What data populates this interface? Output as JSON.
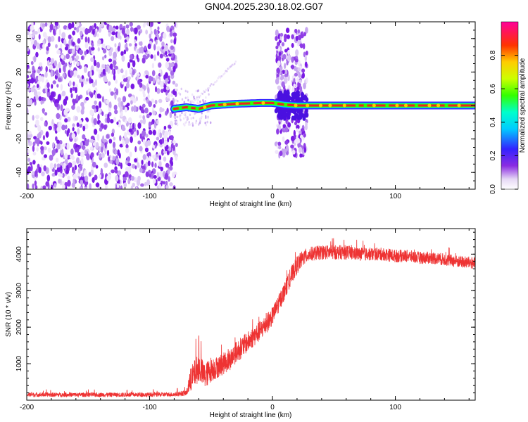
{
  "title": "GN04.2025.230.18.02.G07",
  "chart_data": [
    {
      "type": "heatmap",
      "xlabel": "Height of straight line (km)",
      "ylabel": "Frequency (Hz)",
      "xlim": [
        -200,
        165
      ],
      "ylim": [
        -50,
        50
      ],
      "x_ticks": [
        -200,
        -100,
        0,
        100
      ],
      "y_ticks": [
        -40,
        -20,
        0,
        20,
        40
      ],
      "colorbar": {
        "label": "Normalized spectral amplitude",
        "range": [
          0,
          1
        ],
        "ticks": [
          "0.0",
          "0.2",
          "0.4",
          "0.6",
          "0.8"
        ],
        "colormap": "rainbow (white-purple-blue-cyan-green-yellow-red-magenta)"
      },
      "features": [
        {
          "label": "broadband noise",
          "x_range": [
            -200,
            -78
          ],
          "freq_range": [
            -50,
            50
          ],
          "amplitude": 0.1
        },
        {
          "label": "carrier line",
          "x_range": [
            -80,
            165
          ],
          "freq_approx": [
            [
              -80,
              -2
            ],
            [
              -70,
              -1
            ],
            [
              -60,
              -2
            ],
            [
              -50,
              0
            ],
            [
              -30,
              1
            ],
            [
              -10,
              1.5
            ],
            [
              0,
              1.5
            ],
            [
              10,
              0.5
            ],
            [
              20,
              0
            ],
            [
              165,
              0
            ]
          ],
          "amplitude": 0.9
        },
        {
          "label": "spread burst",
          "x_range": [
            3,
            28
          ],
          "freq_range": [
            -30,
            45
          ],
          "amplitude": 0.15
        }
      ]
    },
    {
      "type": "line",
      "xlabel": "Height of straight line (km)",
      "ylabel": "SNR (10 * v/v)",
      "xlim": [
        -200,
        165
      ],
      "ylim": [
        0,
        4700
      ],
      "x_ticks": [
        -200,
        -100,
        0,
        100
      ],
      "y_ticks": [
        1000,
        2000,
        3000,
        4000
      ],
      "color": "#ee3333",
      "series": [
        {
          "x": [
            -200,
            -180,
            -160,
            -140,
            -120,
            -100,
            -80,
            -70,
            -66,
            -60,
            -55,
            -50,
            -45,
            -40,
            -35,
            -30,
            -25,
            -20,
            -15,
            -10,
            -5,
            0,
            5,
            10,
            15,
            20,
            25,
            30,
            40,
            50,
            60,
            70,
            80,
            90,
            100,
            110,
            120,
            130,
            140,
            150,
            165
          ],
          "y": [
            150,
            150,
            150,
            150,
            150,
            150,
            160,
            200,
            600,
            900,
            650,
            850,
            900,
            1000,
            1100,
            1300,
            1450,
            1600,
            1750,
            1900,
            2100,
            2300,
            2650,
            3000,
            3400,
            3700,
            3900,
            4000,
            4050,
            4050,
            4050,
            4000,
            4000,
            4000,
            3950,
            3950,
            3900,
            3900,
            3850,
            3800,
            3750
          ],
          "noise": [
            60,
            60,
            60,
            60,
            60,
            60,
            60,
            80,
            350,
            400,
            350,
            350,
            300,
            300,
            300,
            300,
            300,
            280,
            280,
            280,
            280,
            250,
            250,
            250,
            250,
            250,
            220,
            200,
            200,
            200,
            200,
            180,
            180,
            180,
            180,
            170,
            170,
            170,
            170,
            170,
            170
          ]
        }
      ]
    }
  ]
}
